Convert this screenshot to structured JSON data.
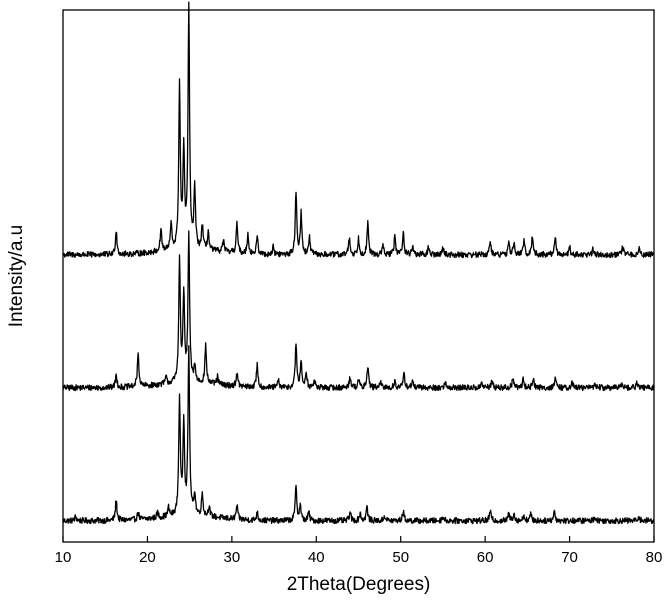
{
  "chart_data": {
    "type": "line",
    "xlabel": "2Theta(Degrees)",
    "ylabel": "Intensity/a.u",
    "xlim": [
      10,
      80
    ],
    "ylim": [
      0,
      100
    ],
    "x_ticks": [
      10,
      20,
      30,
      40,
      50,
      60,
      70,
      80
    ],
    "grid": false,
    "legend": "none",
    "line_color": "#000000",
    "series": [
      {
        "baseline": 4,
        "noise": 0.55,
        "peaks": [
          [
            11.5,
            0.8
          ],
          [
            16.3,
            3.8
          ],
          [
            18.9,
            1.4
          ],
          [
            21.2,
            1.0
          ],
          [
            22.5,
            1.6
          ],
          [
            23.8,
            22.0
          ],
          [
            24.3,
            17.5
          ],
          [
            24.9,
            31.0
          ],
          [
            25.6,
            4.0
          ],
          [
            26.5,
            4.2
          ],
          [
            27.3,
            2.0
          ],
          [
            30.6,
            2.6
          ],
          [
            33.0,
            1.5
          ],
          [
            37.6,
            6.5
          ],
          [
            38.1,
            2.8
          ],
          [
            39.1,
            1.6
          ],
          [
            44.0,
            1.6
          ],
          [
            45.2,
            1.4
          ],
          [
            46.0,
            2.6
          ],
          [
            48.1,
            1.0
          ],
          [
            50.3,
            1.8
          ],
          [
            55.0,
            0.8
          ],
          [
            60.6,
            1.8
          ],
          [
            62.8,
            1.2
          ],
          [
            63.4,
            1.4
          ],
          [
            64.6,
            1.0
          ],
          [
            65.4,
            1.2
          ],
          [
            68.2,
            1.8
          ],
          [
            73.0,
            0.8
          ],
          [
            78.2,
            0.8
          ]
        ]
      },
      {
        "baseline": 29,
        "noise": 0.55,
        "peaks": [
          [
            16.3,
            2.4
          ],
          [
            18.9,
            6.2
          ],
          [
            22.2,
            1.2
          ],
          [
            23.8,
            23.0
          ],
          [
            24.3,
            16.5
          ],
          [
            24.9,
            27.5
          ],
          [
            25.6,
            3.0
          ],
          [
            26.9,
            7.0
          ],
          [
            28.3,
            1.4
          ],
          [
            30.6,
            2.6
          ],
          [
            33.0,
            4.2
          ],
          [
            35.5,
            1.4
          ],
          [
            37.6,
            8.2
          ],
          [
            38.2,
            4.6
          ],
          [
            38.8,
            3.0
          ],
          [
            39.8,
            1.2
          ],
          [
            44.0,
            2.2
          ],
          [
            45.0,
            1.6
          ],
          [
            46.1,
            4.2
          ],
          [
            47.6,
            1.0
          ],
          [
            49.3,
            1.2
          ],
          [
            50.4,
            2.6
          ],
          [
            51.4,
            1.2
          ],
          [
            55.3,
            1.0
          ],
          [
            59.6,
            0.9
          ],
          [
            60.8,
            1.2
          ],
          [
            63.3,
            1.8
          ],
          [
            64.5,
            1.6
          ],
          [
            65.7,
            1.8
          ],
          [
            68.3,
            1.6
          ],
          [
            70.3,
            1.0
          ],
          [
            73.0,
            0.9
          ],
          [
            76.2,
            1.0
          ],
          [
            78.0,
            0.9
          ]
        ]
      },
      {
        "baseline": 54,
        "noise": 0.55,
        "peaks": [
          [
            16.3,
            4.6
          ],
          [
            21.6,
            4.2
          ],
          [
            22.8,
            4.8
          ],
          [
            23.8,
            30.5
          ],
          [
            24.3,
            18.5
          ],
          [
            24.9,
            45.0
          ],
          [
            25.6,
            11.5
          ],
          [
            26.5,
            4.6
          ],
          [
            27.2,
            3.4
          ],
          [
            29.0,
            2.2
          ],
          [
            30.6,
            5.6
          ],
          [
            31.9,
            3.8
          ],
          [
            33.0,
            3.2
          ],
          [
            34.9,
            1.4
          ],
          [
            37.6,
            11.8
          ],
          [
            38.2,
            7.6
          ],
          [
            39.2,
            3.2
          ],
          [
            43.9,
            3.2
          ],
          [
            45.0,
            3.0
          ],
          [
            46.1,
            5.8
          ],
          [
            47.9,
            1.6
          ],
          [
            49.3,
            3.4
          ],
          [
            50.3,
            4.2
          ],
          [
            51.4,
            1.6
          ],
          [
            53.3,
            1.4
          ],
          [
            55.0,
            1.4
          ],
          [
            60.6,
            2.4
          ],
          [
            62.8,
            2.0
          ],
          [
            63.4,
            2.2
          ],
          [
            64.6,
            2.6
          ],
          [
            65.6,
            3.4
          ],
          [
            68.3,
            3.2
          ],
          [
            70.0,
            1.4
          ],
          [
            72.8,
            1.2
          ],
          [
            76.3,
            1.4
          ],
          [
            78.2,
            1.2
          ]
        ]
      }
    ]
  }
}
